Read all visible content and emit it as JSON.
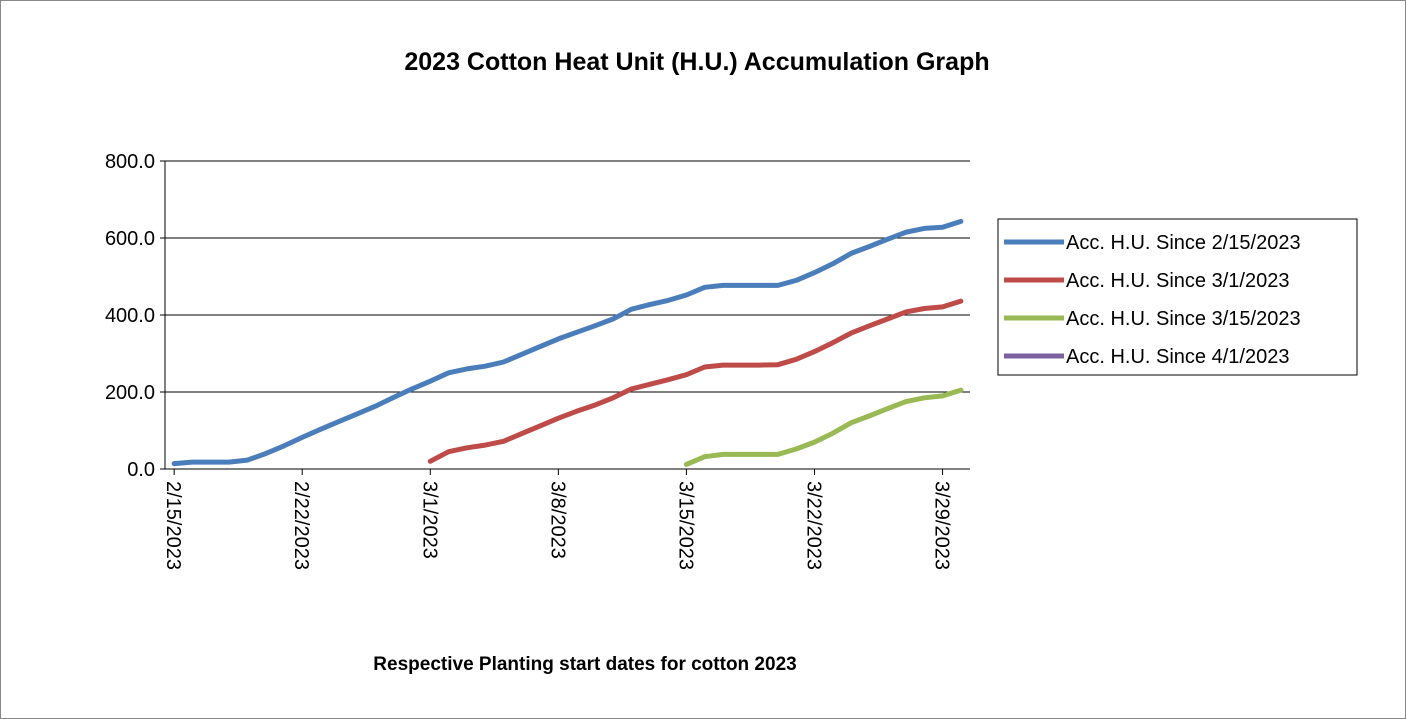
{
  "chart_data": {
    "type": "line",
    "title": "2023 Cotton Heat Unit (H.U.) Accumulation Graph",
    "x_label": "Respective Planting start dates for cotton 2023",
    "categories": [
      "2/15/2023",
      null,
      null,
      null,
      null,
      null,
      null,
      "2/22/2023",
      null,
      null,
      null,
      null,
      null,
      null,
      "3/1/2023",
      null,
      null,
      null,
      null,
      null,
      null,
      "3/8/2023",
      null,
      null,
      null,
      null,
      null,
      null,
      "3/15/2023",
      null,
      null,
      null,
      null,
      null,
      null,
      "3/22/2023",
      null,
      null,
      null,
      null,
      null,
      null,
      "3/29/2023",
      null
    ],
    "series": [
      {
        "name": "Acc. H.U. Since 2/15/2023",
        "color": "#4a7ebb",
        "values": [
          14,
          18,
          18,
          18,
          23,
          40,
          60,
          82,
          103,
          123,
          143,
          163,
          186,
          208,
          228,
          250,
          260,
          267,
          278,
          298,
          318,
          338,
          355,
          372,
          390,
          415,
          427,
          438,
          452,
          472,
          477,
          477,
          477,
          477,
          490,
          510,
          533,
          560,
          578,
          597,
          615,
          625,
          628,
          643
        ]
      },
      {
        "name": "Acc. H.U. Since 3/1/2023",
        "color": "#be4b48",
        "values": [
          null,
          null,
          null,
          null,
          null,
          null,
          null,
          null,
          null,
          null,
          null,
          null,
          null,
          null,
          20,
          45,
          55,
          62,
          72,
          92,
          112,
          132,
          150,
          166,
          185,
          208,
          220,
          232,
          245,
          265,
          270,
          270,
          270,
          271,
          285,
          305,
          328,
          353,
          372,
          390,
          408,
          417,
          421,
          436
        ]
      },
      {
        "name": "Acc. H.U. Since 3/15/2023",
        "color": "#98b954",
        "values": [
          null,
          null,
          null,
          null,
          null,
          null,
          null,
          null,
          null,
          null,
          null,
          null,
          null,
          null,
          null,
          null,
          null,
          null,
          null,
          null,
          null,
          null,
          null,
          null,
          null,
          null,
          null,
          null,
          12,
          32,
          38,
          38,
          38,
          38,
          52,
          70,
          93,
          120,
          138,
          157,
          175,
          185,
          190,
          205
        ]
      },
      {
        "name": "Acc. H.U. Since 4/1/2023",
        "color": "#7d60a0",
        "values": [
          null,
          null,
          null,
          null,
          null,
          null,
          null,
          null,
          null,
          null,
          null,
          null,
          null,
          null,
          null,
          null,
          null,
          null,
          null,
          null,
          null,
          null,
          null,
          null,
          null,
          null,
          null,
          null,
          null,
          null,
          null,
          null,
          null,
          null,
          null,
          null,
          null,
          null,
          null,
          null,
          null,
          null,
          null,
          null
        ]
      }
    ],
    "ylim": [
      0,
      800
    ],
    "yticks": [
      {
        "value": 0,
        "label": "0.0"
      },
      {
        "value": 200,
        "label": "200.0"
      },
      {
        "value": 400,
        "label": "400.0"
      },
      {
        "value": 600,
        "label": "600.0"
      },
      {
        "value": 800,
        "label": "800.0"
      }
    ],
    "grid": true,
    "legend": "right"
  }
}
